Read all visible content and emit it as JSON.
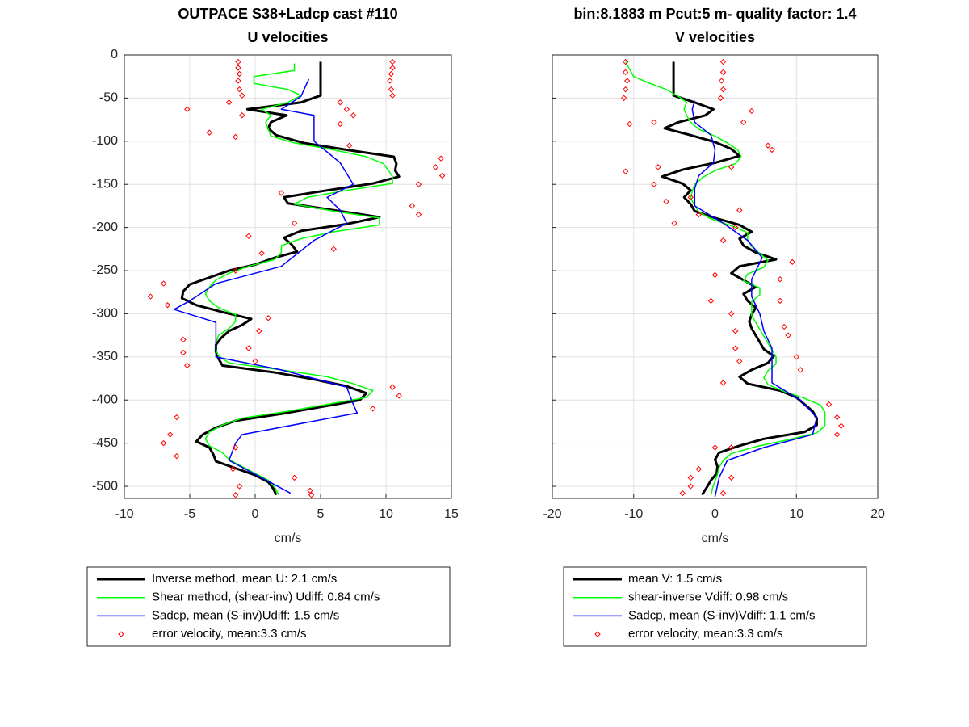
{
  "chart_data": [
    {
      "type": "line",
      "title": "OUTPACE S38+Ladcp cast #110",
      "subtitle": "U velocities",
      "xlabel": "cm/s",
      "xlim": [
        -10,
        15
      ],
      "xticks": [
        -10,
        -5,
        0,
        5,
        10,
        15
      ],
      "ylim": [
        -514,
        0
      ],
      "yticks": [
        0,
        -50,
        -100,
        -150,
        -200,
        -250,
        -300,
        -350,
        -400,
        -450,
        -500
      ],
      "show_ytick_labels": true,
      "grid": true,
      "series": [
        {
          "name": "Inverse method, mean U:  2.1 cm/s",
          "color": "#000000",
          "width": 3,
          "values": [
            5.0,
            5.0,
            3.5,
            -0.6,
            2.4,
            1.2,
            1.0,
            1.6,
            3.7,
            7,
            10.6,
            10.8,
            10.7,
            11.0,
            9,
            5.5,
            2.2,
            2.5,
            6.0,
            9.5,
            7,
            3.5,
            2.2,
            2.8,
            3.2,
            1.5,
            0,
            -2,
            -3.5,
            -5,
            -5.5,
            -5.6,
            -4.5,
            -2.5,
            -0.3,
            -1,
            -2,
            -2.6,
            -3,
            -3,
            -2.8,
            -2.5,
            1.5,
            4.5,
            7,
            8.5,
            8.0,
            5,
            2,
            -1.5,
            -3,
            -4,
            -4.5,
            -3.5,
            -3.2,
            -3,
            -1.5,
            0,
            1,
            1.4,
            1.6
          ],
          "depth": [
            -8,
            -47,
            -55,
            -63,
            -70,
            -78,
            -85,
            -93,
            -102,
            -110,
            -118,
            -126,
            -134,
            -141,
            -149,
            -157,
            -165,
            -172,
            -180,
            -188,
            -196,
            -204,
            -212,
            -220,
            -228,
            -235,
            -243,
            -250,
            -258,
            -266,
            -274,
            -282,
            -290,
            -298,
            -306,
            -313,
            -320,
            -328,
            -336,
            -344,
            -352,
            -360,
            -368,
            -376,
            -384,
            -392,
            -400,
            -408,
            -416,
            -424,
            -432,
            -440,
            -448,
            -455,
            -463,
            -471,
            -479,
            -487,
            -495,
            -503,
            -510
          ]
        },
        {
          "name": "Shear method, (shear-inv)  Udiff:  0.84 cm/s",
          "color": "#00ff00",
          "width": 1.5,
          "values": [
            3.0,
            3.0,
            -0.1,
            -0.1,
            2.5,
            3.5,
            2.5,
            0.5,
            1.2,
            0.8,
            1.0,
            1.2,
            3,
            6,
            8.5,
            9.8,
            10.2,
            10.5,
            10.5,
            7,
            4,
            3,
            6,
            9.5,
            9.5,
            6,
            3.5,
            2,
            2,
            1.5,
            -0.5,
            -2,
            -3,
            -3.5,
            -3.8,
            -3.5,
            -2.8,
            -1.5,
            -1.5,
            -2,
            -2.8,
            -3,
            -3,
            -2.8,
            -2,
            2,
            5.5,
            7.5,
            9,
            8.5,
            5.5,
            2.5,
            -1,
            -2.5,
            -3.5,
            -3.8,
            -3.5,
            -2.5,
            -2,
            -1,
            0,
            1,
            1.5,
            1.8
          ],
          "depth": [
            -10,
            -18,
            -25,
            -33,
            -40,
            -47,
            -55,
            -63,
            -70,
            -78,
            -86,
            -94,
            -102,
            -110,
            -118,
            -126,
            -134,
            -141,
            -149,
            -157,
            -165,
            -173,
            -181,
            -189,
            -197,
            -205,
            -213,
            -221,
            -229,
            -237,
            -245,
            -253,
            -261,
            -269,
            -277,
            -285,
            -293,
            -301,
            -309,
            -317,
            -325,
            -333,
            -341,
            -349,
            -357,
            -365,
            -373,
            -381,
            -389,
            -397,
            -405,
            -413,
            -421,
            -429,
            -437,
            -445,
            -453,
            -461,
            -469,
            -477,
            -485,
            -493,
            -501,
            -510
          ]
        },
        {
          "name": "Sadcp, mean (S-inv)Udiff: 1.5 cm/s",
          "color": "#0000ff",
          "width": 1.5,
          "values": [
            4.1,
            3.5,
            2,
            4.5,
            4.5,
            6.5,
            7.5,
            5.5,
            6.5,
            7,
            4.5,
            2,
            -3,
            -5,
            -6.2,
            -3,
            -3,
            -3,
            2,
            7,
            7.5,
            7.8,
            -1,
            -1.5,
            -2,
            0.5,
            2.7
          ],
          "depth": [
            -28,
            -48,
            -63,
            -70,
            -100,
            -125,
            -150,
            -165,
            -180,
            -195,
            -215,
            -245,
            -265,
            -285,
            -295,
            -310,
            -325,
            -350,
            -365,
            -385,
            -405,
            -415,
            -440,
            -450,
            -470,
            -490,
            -508
          ]
        },
        {
          "name": "error velocity, mean:3.3 cm/s",
          "color": "#ff0000",
          "marker": "diamond",
          "values": [
            -1.3,
            10.5,
            -1.3,
            10.5,
            -1.2,
            10.4,
            -1.3,
            10.3,
            -1.2,
            10.4,
            -1.0,
            10.5,
            -2,
            6.5,
            -5.2,
            7,
            -1,
            7.5,
            -3.5,
            6.5,
            -1.5,
            7.2,
            14.2,
            13.8,
            14.3,
            12.5,
            2,
            12,
            12.5,
            3,
            -0.5,
            0.5,
            6,
            -1.5,
            -8,
            -7,
            -6.7,
            1,
            0.3,
            -5.5,
            -5.5,
            -0.5,
            -5.2,
            0,
            10.5,
            11,
            -6,
            9,
            -6.5,
            -7,
            -6,
            -1.5,
            -1.7,
            3,
            -1.2,
            4.2,
            -1.5,
            4.3
          ],
          "depth": [
            -8,
            -8,
            -15,
            -15,
            -22,
            -22,
            -30,
            -30,
            -40,
            -40,
            -47,
            -47,
            -55,
            -55,
            -63,
            -63,
            -70,
            -70,
            -90,
            -80,
            -95,
            -105,
            -120,
            -130,
            -140,
            -150,
            -160,
            -175,
            -185,
            -195,
            -210,
            -230,
            -225,
            -250,
            -280,
            -265,
            -290,
            -305,
            -320,
            -330,
            -345,
            -340,
            -360,
            -355,
            -385,
            -395,
            -420,
            -410,
            -440,
            -450,
            -465,
            -455,
            -480,
            -490,
            -500,
            -505,
            -510,
            -510
          ]
        }
      ]
    },
    {
      "type": "line",
      "title": "bin:8.1883 m  Pcut:5 m- quality factor:  1.4",
      "subtitle": "V velocities",
      "xlabel": "cm/s",
      "xlim": [
        -20,
        20
      ],
      "xticks": [
        -20,
        -10,
        0,
        10,
        20
      ],
      "ylim": [
        -514,
        0
      ],
      "yticks": [
        0,
        -50,
        -100,
        -150,
        -200,
        -250,
        -300,
        -350,
        -400,
        -450,
        -500
      ],
      "show_ytick_labels": false,
      "grid": true,
      "series": [
        {
          "name": "mean V:  1.5 cm/s",
          "color": "#000000",
          "width": 3,
          "values": [
            -5.1,
            -5.1,
            -2.5,
            -0.2,
            -1.2,
            -4.5,
            -6.2,
            -3,
            0,
            2,
            3,
            0,
            -4,
            -6.5,
            -4,
            -3,
            -3.8,
            -3,
            -2.5,
            0,
            3,
            4.5,
            3,
            3.5,
            5,
            7.5,
            3,
            2,
            3.5,
            5,
            3.5,
            4,
            5,
            4.5,
            4.2,
            4.5,
            5,
            5.5,
            6,
            7.2,
            6.5,
            4.5,
            3,
            4,
            8,
            10,
            11,
            12,
            12.5,
            12.5,
            11,
            6,
            3,
            0.5,
            0,
            0.3,
            0.2,
            -0.5,
            -1,
            -1.6
          ],
          "depth": [
            -8,
            -47,
            -55,
            -63,
            -70,
            -78,
            -85,
            -93,
            -101,
            -109,
            -117,
            -125,
            -133,
            -141,
            -149,
            -157,
            -165,
            -173,
            -181,
            -189,
            -197,
            -205,
            -213,
            -221,
            -229,
            -237,
            -245,
            -253,
            -261,
            -269,
            -277,
            -285,
            -293,
            -301,
            -309,
            -317,
            -325,
            -333,
            -341,
            -349,
            -357,
            -365,
            -373,
            -381,
            -389,
            -397,
            -405,
            -413,
            -421,
            -429,
            -437,
            -445,
            -453,
            -461,
            -469,
            -477,
            -485,
            -493,
            -501,
            -510
          ]
        },
        {
          "name": "shear-inverse Vdiff:  0.98 cm/s",
          "color": "#00ff00",
          "width": 1.5,
          "values": [
            -11,
            -10,
            -8,
            -6,
            -4.5,
            -3.5,
            -3.8,
            -3.5,
            -3,
            -2,
            0,
            1.5,
            2.8,
            3.2,
            2.5,
            0,
            -1.5,
            -2.5,
            -2.8,
            -3,
            -2.5,
            -2,
            -0.5,
            2,
            4,
            4,
            4.5,
            5.5,
            6.5,
            6,
            4,
            3.5,
            5.5,
            5.5,
            4.5,
            4.5,
            4.5,
            5,
            5.5,
            6,
            6.5,
            7,
            7.5,
            7.5,
            6.5,
            6,
            6.5,
            8.5,
            11,
            13,
            13.5,
            13.5,
            13.5,
            12.5,
            9,
            5,
            2,
            1,
            0.5,
            0.3,
            0,
            -0.3,
            -0.5
          ],
          "depth": [
            -8,
            -25,
            -33,
            -40,
            -48,
            -55,
            -63,
            -70,
            -78,
            -86,
            -94,
            -102,
            -110,
            -118,
            -126,
            -134,
            -142,
            -150,
            -158,
            -166,
            -174,
            -182,
            -190,
            -198,
            -206,
            -214,
            -222,
            -230,
            -238,
            -246,
            -254,
            -262,
            -270,
            -278,
            -286,
            -294,
            -302,
            -310,
            -318,
            -326,
            -334,
            -342,
            -350,
            -358,
            -366,
            -374,
            -382,
            -390,
            -398,
            -406,
            -414,
            -422,
            -430,
            -438,
            -446,
            -454,
            -462,
            -470,
            -478,
            -486,
            -494,
            -502,
            -510
          ]
        },
        {
          "name": "Sadcp, mean (S-inv)Vdiff: 1.1 cm/s",
          "color": "#0000ff",
          "width": 1.5,
          "values": [
            -2.5,
            -2.8,
            -2.5,
            -0.5,
            0,
            -0.2,
            -2,
            -2.5,
            -2.5,
            1,
            4,
            5.8,
            4.5,
            4.5,
            5.5,
            6,
            7,
            7,
            7,
            10.5,
            12.5,
            12,
            6,
            1.5,
            0.5,
            0
          ],
          "depth": [
            -53,
            -63,
            -78,
            -93,
            -110,
            -125,
            -140,
            -155,
            -175,
            -195,
            -215,
            -235,
            -260,
            -280,
            -300,
            -320,
            -340,
            -360,
            -380,
            -400,
            -420,
            -440,
            -455,
            -470,
            -490,
            -512
          ]
        },
        {
          "name": "error velocity, mean:3.3 cm/s",
          "color": "#ff0000",
          "marker": "diamond",
          "values": [
            -11,
            1,
            -11,
            1,
            -10.8,
            0.8,
            -11,
            1,
            -11.2,
            0.7,
            -10.5,
            4.5,
            -7.5,
            3.5,
            -11,
            6.5,
            -7,
            7,
            -7.5,
            2,
            -6,
            -3,
            -2,
            3,
            -5,
            2.5,
            1,
            9.5,
            0,
            8,
            -0.5,
            8,
            2,
            8.5,
            2.5,
            9,
            2.5,
            10,
            3,
            10.5,
            1,
            14,
            15,
            15.5,
            15,
            0,
            2,
            -2,
            -3,
            -3,
            2,
            -4,
            1
          ],
          "depth": [
            -8,
            -8,
            -20,
            -20,
            -30,
            -30,
            -40,
            -40,
            -50,
            -50,
            -80,
            -65,
            -78,
            -78,
            -135,
            -105,
            -130,
            -110,
            -150,
            -130,
            -170,
            -165,
            -185,
            -180,
            -195,
            -200,
            -215,
            -240,
            -255,
            -260,
            -285,
            -285,
            -300,
            -315,
            -320,
            -325,
            -340,
            -350,
            -355,
            -365,
            -380,
            -405,
            -420,
            -430,
            -440,
            -455,
            -455,
            -480,
            -490,
            -500,
            -490,
            -508,
            -508
          ]
        }
      ]
    }
  ]
}
